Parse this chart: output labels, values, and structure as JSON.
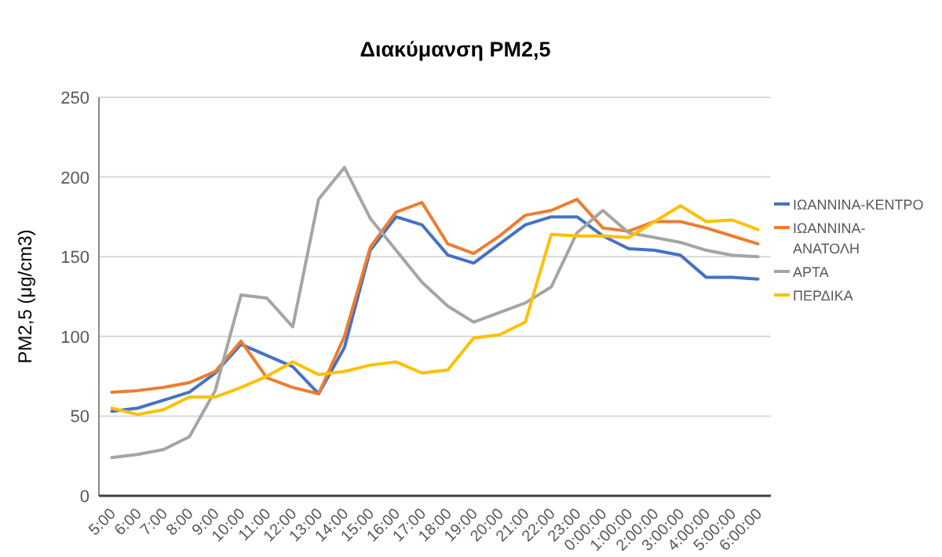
{
  "chart_data": {
    "type": "line",
    "title": "Διακύμανση PM2,5",
    "ylabel": "PM2,5 (μg/cm3)",
    "categories": [
      "5:00",
      "6:00",
      "7:00",
      "8:00",
      "9:00",
      "10:00",
      "11:00",
      "12:00",
      "13:00",
      "14:00",
      "15:00",
      "16:00",
      "17:00",
      "18:00",
      "19:00",
      "20:00",
      "21:00",
      "22:00",
      "23:00",
      "0:00:00",
      "1:00:00",
      "2:00:00",
      "3:00:00",
      "4:00:00",
      "5:00:00",
      "6:00:00"
    ],
    "series": [
      {
        "name": "ΙΩΑΝΝΙΝΑ-ΚΕΝΤΡΟ",
        "color": "#4472c4",
        "values": [
          53,
          55,
          60,
          65,
          77,
          95,
          88,
          81,
          64,
          93,
          154,
          175,
          170,
          151,
          146,
          158,
          170,
          175,
          175,
          163,
          155,
          154,
          151,
          137,
          137,
          136
        ]
      },
      {
        "name": "ΙΩΑΝΝΙΝΑ-ΑΝΑΤΟΛΗ",
        "color": "#ed7d31",
        "values": [
          65,
          66,
          68,
          71,
          78,
          97,
          74,
          68,
          64,
          100,
          156,
          178,
          184,
          158,
          152,
          163,
          176,
          179,
          186,
          168,
          166,
          172,
          172,
          168,
          163,
          158
        ]
      },
      {
        "name": "ΑΡΤΑ",
        "color": "#a5a5a5",
        "values": [
          24,
          26,
          29,
          37,
          66,
          126,
          124,
          106,
          186,
          206,
          174,
          154,
          134,
          119,
          109,
          115,
          121,
          131,
          165,
          179,
          165,
          162,
          159,
          154,
          151,
          150
        ]
      },
      {
        "name": "ΠΕΡΔΙΚΑ",
        "color": "#ffc000",
        "values": [
          55,
          51,
          54,
          62,
          62,
          68,
          75,
          84,
          76,
          78,
          82,
          84,
          77,
          79,
          99,
          101,
          109,
          164,
          163,
          163,
          162,
          172,
          182,
          172,
          173,
          167
        ]
      }
    ],
    "ylim": [
      0,
      250
    ],
    "yticks": [
      0,
      50,
      100,
      150,
      200,
      250
    ],
    "grid": "y",
    "legend": "right",
    "marker": "none",
    "line_style": "solid"
  }
}
